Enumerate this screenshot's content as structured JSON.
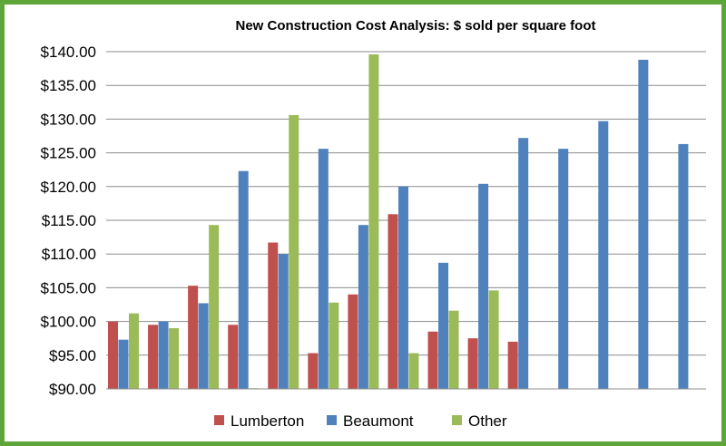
{
  "chart_data": {
    "type": "bar",
    "title": "New Construction  Cost Analysis:  $ sold  per square  foot",
    "xlabel": "",
    "ylabel": "",
    "ylim": [
      90,
      140
    ],
    "yticks": [
      "$140.00",
      "$135.00",
      "$130.00",
      "$125.00",
      "$120.00",
      "$115.00",
      "$110.00",
      "$105.00",
      "$100.00",
      "$95.00",
      "$90.00"
    ],
    "ytick_values": [
      140,
      135,
      130,
      125,
      120,
      115,
      110,
      105,
      100,
      95,
      90
    ],
    "categories": [
      "",
      "",
      "",
      "",
      "",
      "",
      "",
      "",
      "",
      "",
      "",
      "",
      "",
      "",
      ""
    ],
    "grid": "horizontal",
    "legend": "bottom",
    "series": [
      {
        "name": "Lumberton",
        "color": "#c0504d",
        "values": [
          100.0,
          99.5,
          105.3,
          99.5,
          111.7,
          95.3,
          104.0,
          115.9,
          98.5,
          97.5,
          97.0,
          null,
          null,
          null,
          null
        ]
      },
      {
        "name": "Beaumont",
        "color": "#4f81bd",
        "values": [
          97.3,
          100.0,
          102.7,
          122.3,
          110.0,
          125.6,
          114.3,
          120.0,
          108.7,
          120.4,
          127.2,
          125.6,
          129.7,
          138.8,
          126.3
        ]
      },
      {
        "name": "Other",
        "color": "#9bbb59",
        "values": [
          101.2,
          99.0,
          114.3,
          90.1,
          130.6,
          102.8,
          139.6,
          95.3,
          101.6,
          104.6,
          null,
          null,
          null,
          null,
          null
        ]
      }
    ]
  }
}
